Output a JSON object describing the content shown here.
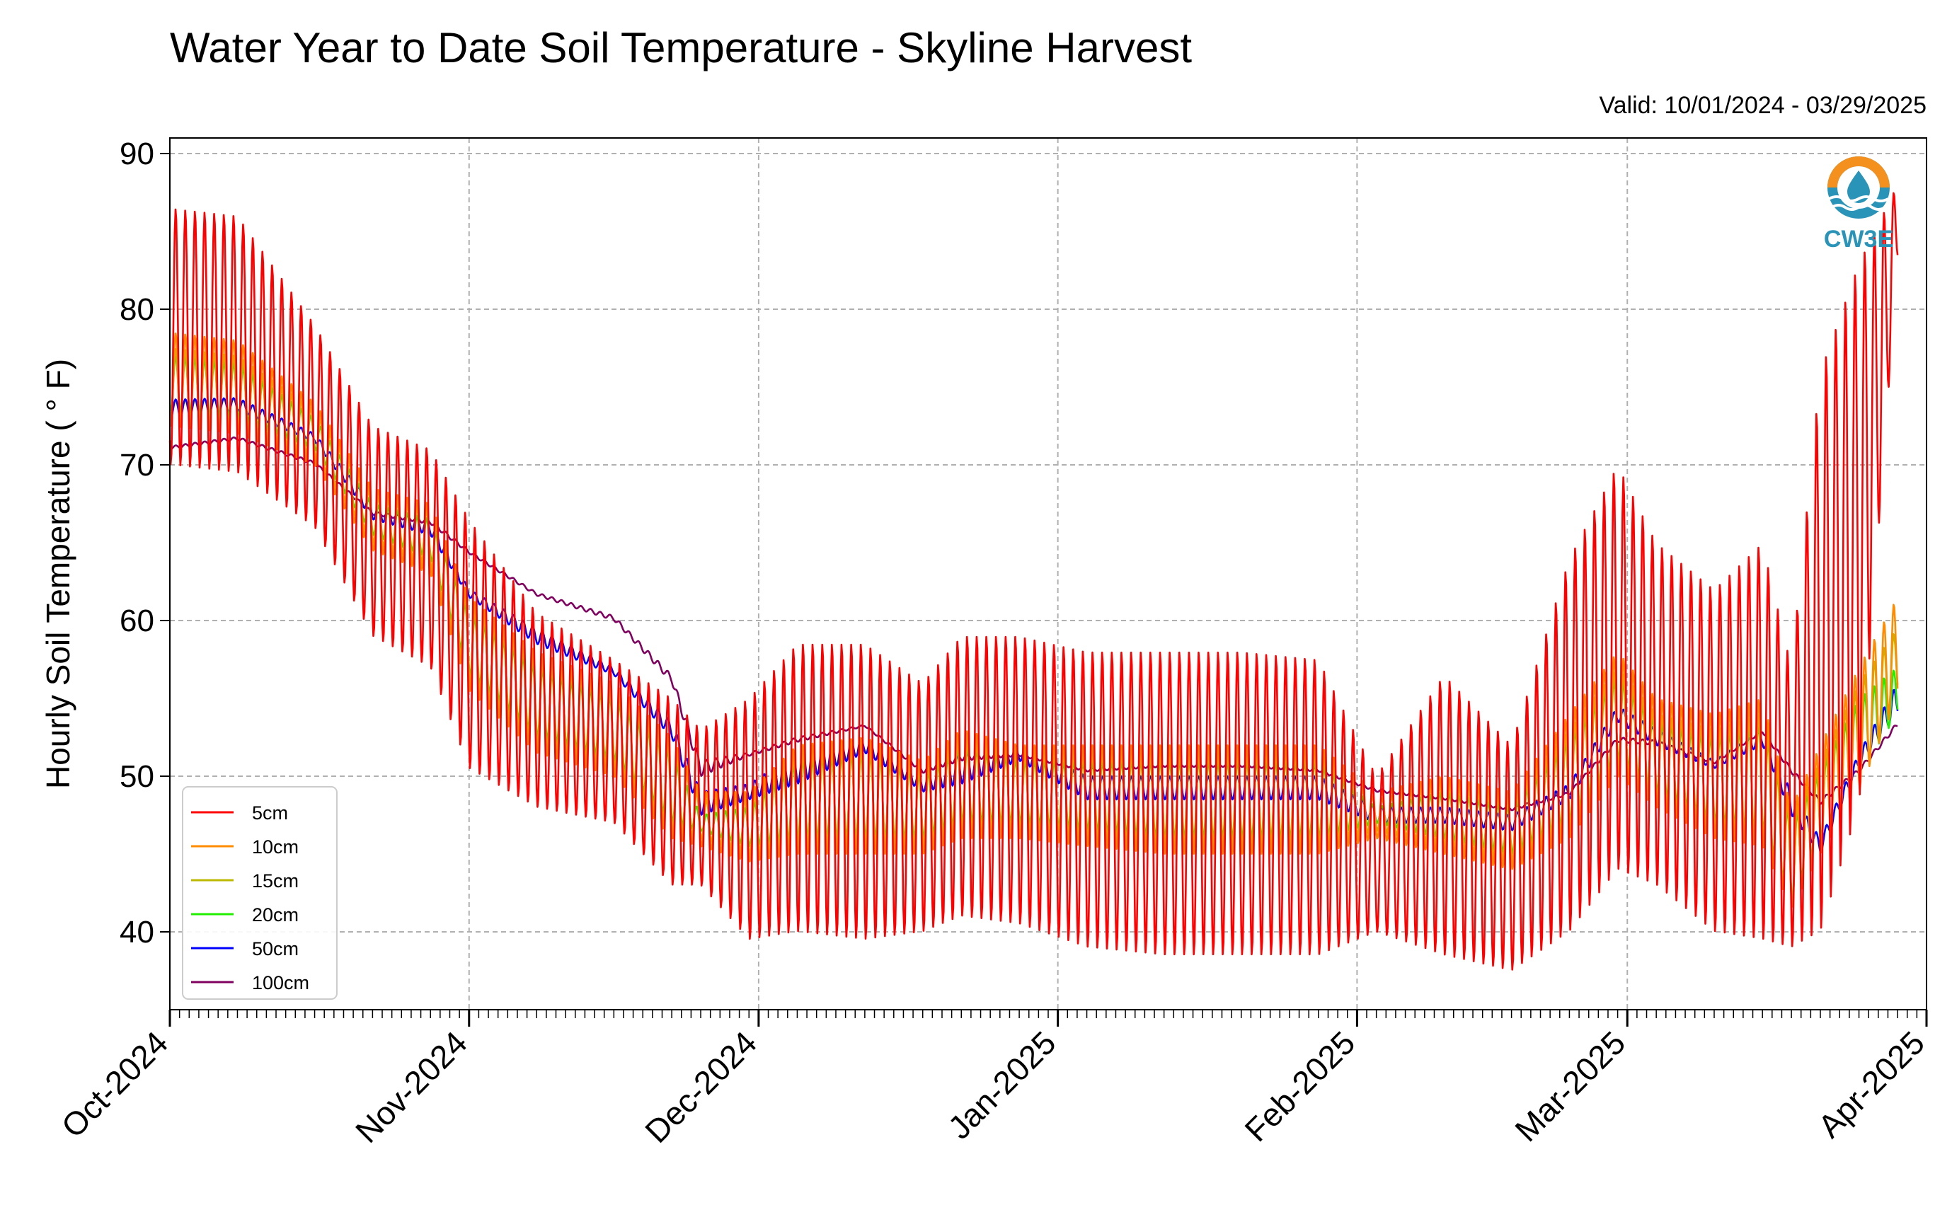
{
  "chart_data": {
    "type": "line",
    "title": "Water Year to Date Soil Temperature - Skyline Harvest",
    "subtitle": "Valid: 10/01/2024 - 03/29/2025",
    "ylabel": "Hourly Soil Temperature ( ° F)",
    "xlabel": "",
    "ylim": [
      35,
      91
    ],
    "xlim": [
      "2024-10-01",
      "2025-04-01"
    ],
    "yticks": [
      40,
      50,
      60,
      70,
      80,
      90
    ],
    "xticks": [
      {
        "date": "2024-10-01",
        "label": "Oct-2024"
      },
      {
        "date": "2024-11-01",
        "label": "Nov-2024"
      },
      {
        "date": "2024-12-01",
        "label": "Dec-2024"
      },
      {
        "date": "2025-01-01",
        "label": "Jan-2025"
      },
      {
        "date": "2025-02-01",
        "label": "Feb-2025"
      },
      {
        "date": "2025-03-01",
        "label": "Mar-2025"
      },
      {
        "date": "2025-04-01",
        "label": "Apr-2025"
      }
    ],
    "grid": true,
    "legend_position": "lower-left",
    "series": [
      {
        "name": "5cm",
        "color": "#ff0000",
        "dates": [
          "2024-10-01",
          "2024-10-08",
          "2024-10-16",
          "2024-10-22",
          "2024-10-28",
          "2024-11-01",
          "2024-11-08",
          "2024-11-16",
          "2024-11-22",
          "2024-11-25",
          "2024-11-30",
          "2024-12-05",
          "2024-12-12",
          "2024-12-18",
          "2024-12-22",
          "2024-12-28",
          "2025-01-04",
          "2025-01-12",
          "2025-01-20",
          "2025-01-28",
          "2025-02-03",
          "2025-02-10",
          "2025-02-17",
          "2025-02-23",
          "2025-02-28",
          "2025-03-04",
          "2025-03-10",
          "2025-03-15",
          "2025-03-18",
          "2025-03-21",
          "2025-03-25",
          "2025-03-29"
        ],
        "daily_max": [
          86.5,
          86.0,
          79.0,
          72.5,
          71.0,
          66.5,
          60.5,
          57.5,
          55.0,
          53.0,
          55.0,
          58.5,
          58.5,
          56.0,
          59.0,
          59.0,
          58.0,
          58.0,
          58.0,
          57.5,
          50.0,
          56.5,
          52.0,
          64.0,
          70.0,
          65.0,
          62.0,
          65.0,
          57.0,
          76.0,
          83.0,
          88.0
        ],
        "daily_min": [
          70.0,
          69.5,
          66.0,
          59.0,
          57.0,
          50.5,
          48.0,
          47.0,
          43.0,
          43.0,
          39.5,
          40.0,
          39.5,
          40.0,
          41.0,
          40.5,
          39.0,
          38.5,
          38.5,
          38.5,
          40.0,
          38.5,
          37.5,
          40.0,
          44.0,
          43.0,
          40.0,
          39.5,
          39.0,
          40.0,
          48.0,
          83.0
        ]
      },
      {
        "name": "10cm",
        "color": "#ff8c00",
        "dates": [
          "2024-10-01",
          "2024-10-08",
          "2024-10-16",
          "2024-10-22",
          "2024-10-28",
          "2024-11-01",
          "2024-11-08",
          "2024-11-16",
          "2024-11-22",
          "2024-11-25",
          "2024-11-30",
          "2024-12-05",
          "2024-12-12",
          "2024-12-18",
          "2024-12-22",
          "2024-12-28",
          "2025-01-04",
          "2025-01-12",
          "2025-01-20",
          "2025-01-28",
          "2025-02-03",
          "2025-02-10",
          "2025-02-17",
          "2025-02-23",
          "2025-02-28",
          "2025-03-04",
          "2025-03-10",
          "2025-03-15",
          "2025-03-18",
          "2025-03-21",
          "2025-03-25",
          "2025-03-29"
        ],
        "daily_max": [
          78.5,
          78.0,
          74.0,
          68.5,
          67.5,
          61.5,
          58.0,
          56.0,
          52.5,
          49.0,
          49.0,
          52.0,
          52.5,
          51.0,
          53.0,
          52.0,
          52.0,
          52.0,
          52.0,
          52.0,
          49.0,
          50.0,
          49.0,
          54.0,
          58.0,
          55.0,
          54.0,
          55.0,
          48.0,
          52.0,
          57.0,
          61.5
        ],
        "daily_min": [
          72.5,
          72.0,
          70.0,
          64.5,
          63.0,
          55.5,
          51.5,
          50.0,
          46.0,
          45.5,
          44.5,
          45.0,
          45.0,
          45.0,
          46.0,
          46.0,
          45.5,
          45.0,
          45.0,
          45.0,
          46.0,
          45.0,
          44.0,
          46.0,
          50.0,
          48.0,
          46.0,
          45.5,
          41.5,
          45.0,
          49.0,
          55.0
        ]
      },
      {
        "name": "15cm",
        "color": "#bdb800",
        "dates": [
          "2024-10-01",
          "2024-10-08",
          "2024-10-16",
          "2024-10-22",
          "2024-10-28",
          "2024-11-01",
          "2024-11-08",
          "2024-11-16",
          "2024-11-22",
          "2024-11-25",
          "2024-11-30",
          "2024-12-05",
          "2024-12-12",
          "2024-12-18",
          "2024-12-22",
          "2024-12-28",
          "2025-01-04",
          "2025-01-12",
          "2025-01-20",
          "2025-01-28",
          "2025-02-03",
          "2025-02-10",
          "2025-02-17",
          "2025-02-23",
          "2025-02-28",
          "2025-03-04",
          "2025-03-10",
          "2025-03-15",
          "2025-03-18",
          "2025-03-21",
          "2025-03-25",
          "2025-03-29"
        ],
        "daily_max": [
          77.5,
          77.0,
          73.5,
          68.0,
          67.0,
          61.0,
          57.5,
          55.5,
          52.0,
          48.5,
          48.5,
          51.5,
          52.0,
          50.5,
          52.5,
          51.5,
          51.5,
          51.5,
          51.5,
          51.5,
          48.5,
          49.5,
          48.5,
          53.0,
          57.0,
          54.0,
          53.0,
          54.0,
          47.5,
          51.0,
          56.0,
          59.5
        ],
        "daily_min": [
          73.0,
          72.5,
          70.5,
          65.0,
          63.5,
          56.0,
          52.0,
          50.5,
          46.5,
          46.0,
          45.0,
          45.5,
          45.5,
          45.5,
          46.5,
          46.5,
          46.0,
          45.5,
          45.5,
          45.5,
          46.5,
          45.5,
          44.5,
          46.5,
          50.5,
          48.5,
          46.5,
          46.0,
          41.5,
          45.5,
          49.5,
          55.5
        ]
      },
      {
        "name": "20cm",
        "color": "#22ee00",
        "dates": [
          "2024-10-01",
          "2024-10-08",
          "2024-10-16",
          "2024-10-22",
          "2024-10-28",
          "2024-11-01",
          "2024-11-08",
          "2024-11-16",
          "2024-11-22",
          "2024-11-25",
          "2024-11-30",
          "2024-12-05",
          "2024-12-12",
          "2024-12-18",
          "2024-12-22",
          "2024-12-28",
          "2025-01-04",
          "2025-01-12",
          "2025-01-20",
          "2025-01-28",
          "2025-02-03",
          "2025-02-10",
          "2025-02-17",
          "2025-02-23",
          "2025-02-28",
          "2025-03-04",
          "2025-03-10",
          "2025-03-15",
          "2025-03-18",
          "2025-03-21",
          "2025-03-25",
          "2025-03-29"
        ],
        "daily_max": [
          77.0,
          76.5,
          73.0,
          67.5,
          66.5,
          60.5,
          57.0,
          55.0,
          51.5,
          47.5,
          48.0,
          51.0,
          51.5,
          50.0,
          52.0,
          51.0,
          51.0,
          51.0,
          51.0,
          51.0,
          48.0,
          49.0,
          48.0,
          52.5,
          56.5,
          53.5,
          52.5,
          53.5,
          47.0,
          50.5,
          55.0,
          57.0
        ],
        "daily_min": [
          73.5,
          73.0,
          71.0,
          65.5,
          64.0,
          56.5,
          52.5,
          51.0,
          47.0,
          46.5,
          45.5,
          46.0,
          46.0,
          46.0,
          47.0,
          47.0,
          46.5,
          46.0,
          46.0,
          46.0,
          47.0,
          46.0,
          45.0,
          47.0,
          51.0,
          49.0,
          47.0,
          46.5,
          42.0,
          46.0,
          50.0,
          54.0
        ]
      },
      {
        "name": "50cm",
        "color": "#0000ff",
        "dates": [
          "2024-10-01",
          "2024-10-08",
          "2024-10-16",
          "2024-10-22",
          "2024-10-28",
          "2024-11-01",
          "2024-11-08",
          "2024-11-16",
          "2024-11-22",
          "2024-11-25",
          "2024-11-30",
          "2024-12-05",
          "2024-12-12",
          "2024-12-18",
          "2024-12-22",
          "2024-12-28",
          "2025-01-04",
          "2025-01-12",
          "2025-01-20",
          "2025-01-28",
          "2025-02-03",
          "2025-02-10",
          "2025-02-17",
          "2025-02-23",
          "2025-02-28",
          "2025-03-04",
          "2025-03-10",
          "2025-03-15",
          "2025-03-18",
          "2025-03-21",
          "2025-03-25",
          "2025-03-29"
        ],
        "daily_max": [
          74.2,
          74.3,
          72.0,
          67.5,
          66.5,
          62.0,
          59.5,
          57.0,
          53.5,
          49.0,
          49.5,
          51.5,
          52.5,
          50.0,
          51.5,
          52.0,
          50.0,
          50.0,
          50.0,
          50.0,
          48.0,
          48.0,
          47.5,
          49.5,
          54.5,
          53.0,
          51.0,
          53.0,
          49.0,
          46.0,
          51.5,
          56.0
        ],
        "daily_min": [
          73.0,
          73.5,
          71.5,
          66.5,
          65.5,
          61.5,
          58.5,
          56.5,
          52.5,
          47.5,
          48.5,
          49.5,
          51.5,
          49.0,
          49.5,
          51.0,
          48.5,
          48.5,
          48.5,
          48.5,
          47.0,
          47.0,
          46.5,
          48.5,
          53.5,
          52.0,
          50.5,
          52.0,
          47.5,
          45.0,
          50.5,
          54.0
        ]
      },
      {
        "name": "100cm",
        "color": "#800060",
        "dates": [
          "2024-10-01",
          "2024-10-08",
          "2024-10-16",
          "2024-10-22",
          "2024-10-28",
          "2024-11-01",
          "2024-11-08",
          "2024-11-16",
          "2024-11-22",
          "2024-11-25",
          "2024-11-30",
          "2024-12-05",
          "2024-12-12",
          "2024-12-18",
          "2024-12-22",
          "2024-12-28",
          "2025-01-04",
          "2025-01-12",
          "2025-01-20",
          "2025-01-28",
          "2025-02-03",
          "2025-02-10",
          "2025-02-17",
          "2025-02-23",
          "2025-02-28",
          "2025-03-04",
          "2025-03-10",
          "2025-03-15",
          "2025-03-18",
          "2025-03-21",
          "2025-03-25",
          "2025-03-29"
        ],
        "daily_max": [
          71.2,
          71.8,
          70.2,
          67.0,
          66.5,
          64.5,
          61.8,
          60.3,
          56.5,
          51.0,
          51.5,
          52.5,
          53.3,
          50.5,
          51.5,
          51.5,
          50.5,
          50.8,
          50.8,
          50.5,
          49.2,
          48.7,
          48.0,
          49.0,
          52.5,
          52.3,
          51.0,
          53.0,
          50.5,
          48.5,
          50.5,
          53.5
        ],
        "daily_min": [
          71.0,
          71.6,
          70.0,
          66.8,
          66.2,
          64.3,
          61.6,
          60.0,
          56.0,
          50.0,
          51.3,
          52.2,
          53.2,
          50.2,
          51.0,
          51.3,
          50.3,
          50.6,
          50.6,
          50.3,
          49.0,
          48.5,
          47.8,
          48.8,
          52.2,
          52.0,
          50.8,
          52.8,
          50.2,
          48.2,
          50.2,
          53.2
        ]
      }
    ]
  },
  "logo": {
    "text": "CW3E",
    "ring_color": "#f4901e",
    "water_color": "#2a93b8"
  }
}
